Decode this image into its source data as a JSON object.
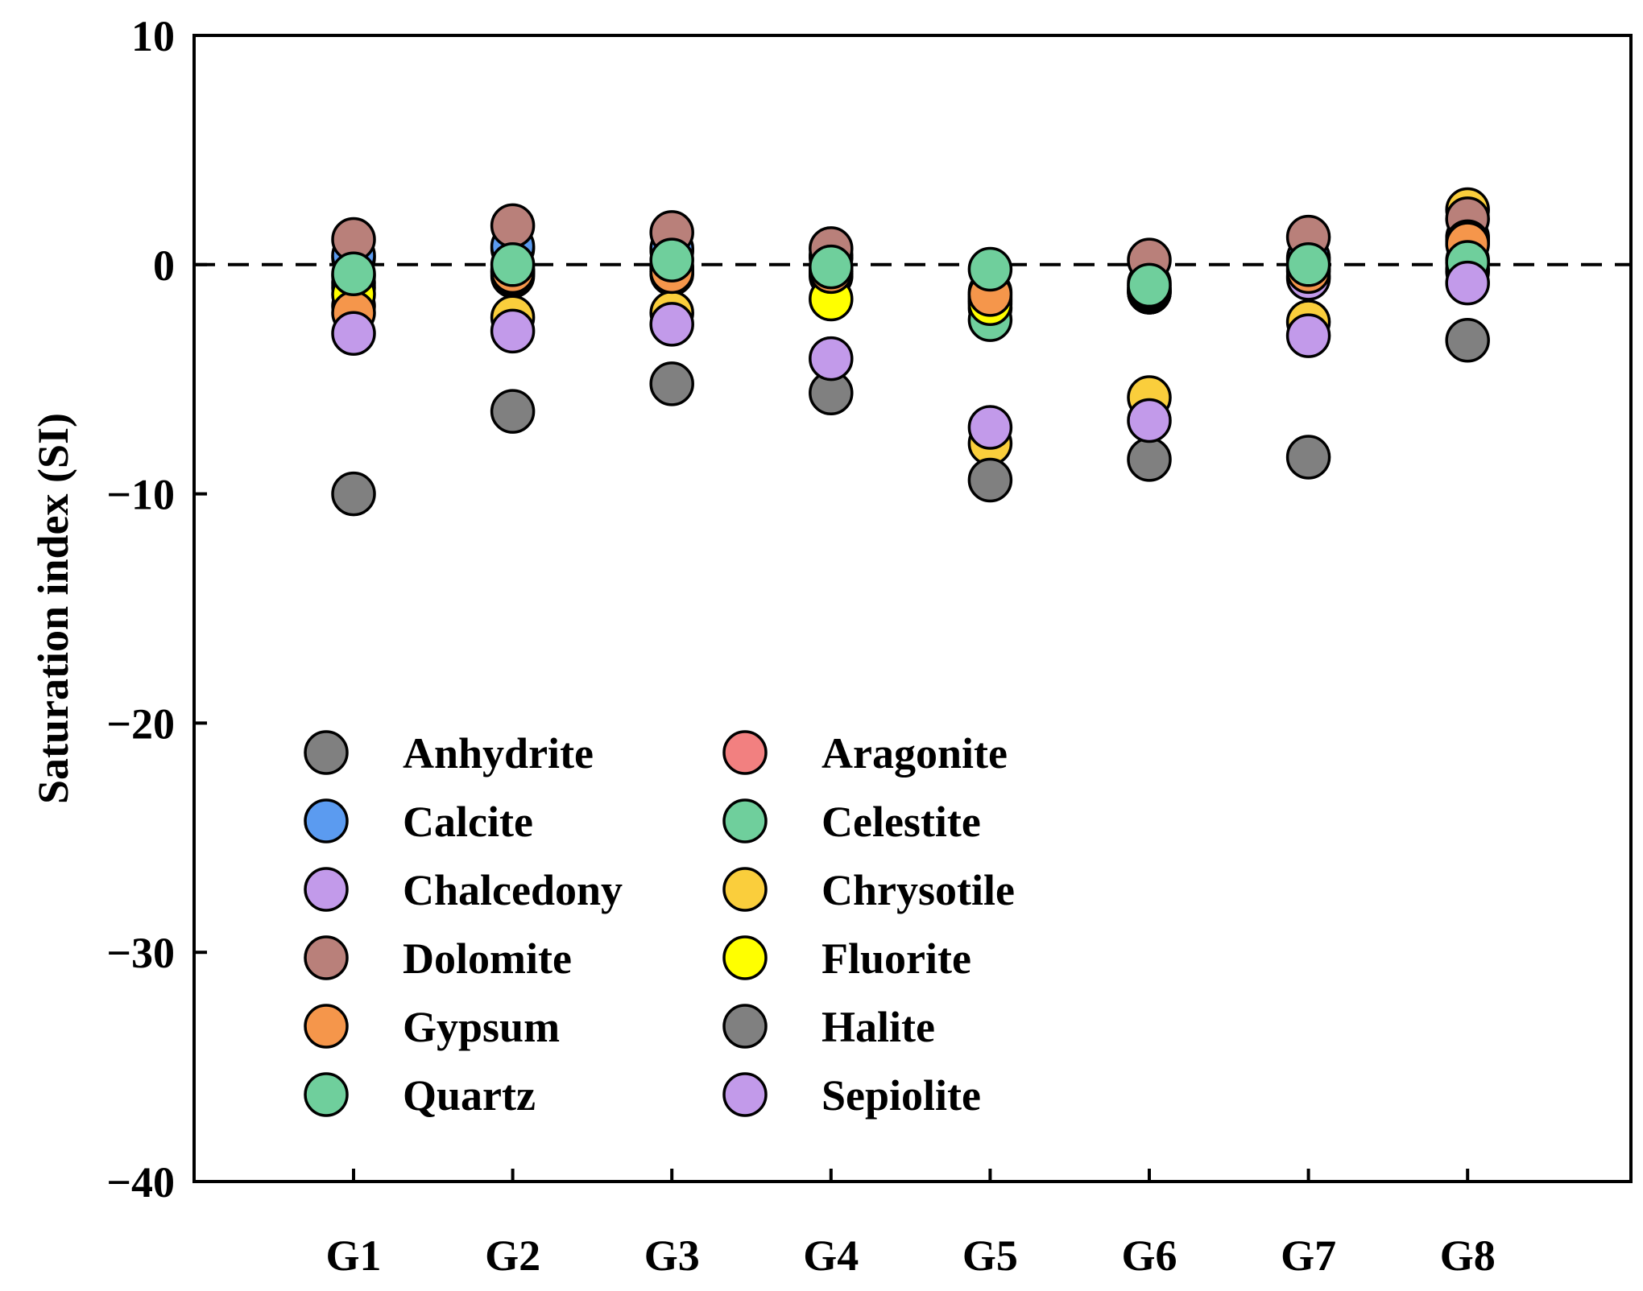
{
  "chart_data": {
    "type": "scatter",
    "title": "",
    "xlabel": "",
    "ylabel": "Saturation index (SI)",
    "ylim": [
      -40,
      10
    ],
    "yticks": [
      10,
      0,
      -10,
      -20,
      -30,
      -40
    ],
    "ytick_labels": [
      "10",
      "0",
      "−10",
      "−20",
      "−30",
      "−40"
    ],
    "reference_line": {
      "y": 0,
      "style": "dashed"
    },
    "categories": [
      "G1",
      "G2",
      "G3",
      "G4",
      "G5",
      "G6",
      "G7",
      "G8"
    ],
    "legend_position": "lower-left",
    "series": [
      {
        "name": "Anhydrite",
        "color": "#808080",
        "values": [
          -1.0,
          -0.5,
          -0.4,
          -0.4,
          -1.9,
          -1.2,
          -0.5,
          -0.3
        ]
      },
      {
        "name": "Aragonite",
        "color": "#F28080",
        "values": [
          0.3,
          0.7,
          0.6,
          0.3,
          -1.5,
          -1.2,
          0.2,
          1.1
        ]
      },
      {
        "name": "Calcite",
        "color": "#5B9BF0",
        "values": [
          0.4,
          0.8,
          0.7,
          0.4,
          -1.4,
          -1.1,
          0.3,
          1.2
        ]
      },
      {
        "name": "Celestite",
        "color": "#6FCF9C",
        "values": [
          -0.5,
          -0.2,
          -0.1,
          -0.3,
          -2.4,
          -0.8,
          -0.1,
          0.2
        ]
      },
      {
        "name": "Chalcedony",
        "color": "#C29AEA",
        "values": [
          -0.8,
          -0.4,
          -0.3,
          -0.5,
          -1.6,
          -1.2,
          -0.6,
          -0.2
        ]
      },
      {
        "name": "Chrysotile",
        "color": "#FACE3C",
        "values": [
          -1.8,
          -2.3,
          -2.1,
          -0.4,
          -7.8,
          -5.8,
          -2.5,
          2.4
        ]
      },
      {
        "name": "Dolomite",
        "color": "#B9807A",
        "values": [
          1.1,
          1.7,
          1.4,
          0.7,
          -1.2,
          0.2,
          1.2,
          2.0
        ]
      },
      {
        "name": "Fluorite",
        "color": "#FFFF00",
        "values": [
          -1.3,
          -0.3,
          -0.2,
          -1.5,
          -1.7,
          -1.1,
          -0.2,
          1.0
        ]
      },
      {
        "name": "Gypsum",
        "color": "#F5964B",
        "values": [
          -2.1,
          -0.3,
          -0.3,
          -0.3,
          -1.3,
          -1.0,
          -0.3,
          0.9
        ]
      },
      {
        "name": "Halite",
        "color": "#808080",
        "values": [
          -10.0,
          -6.4,
          -5.2,
          -5.6,
          -9.4,
          -8.5,
          -8.4,
          -3.3
        ]
      },
      {
        "name": "Quartz",
        "color": "#6FCF9C",
        "values": [
          -0.4,
          0.0,
          0.2,
          -0.1,
          -0.2,
          -0.9,
          0.0,
          0.1
        ]
      },
      {
        "name": "Sepiolite",
        "color": "#C29AEA",
        "values": [
          -3.0,
          -2.9,
          -2.6,
          -4.1,
          -7.1,
          -6.8,
          -3.1,
          -0.8
        ]
      }
    ],
    "legend": {
      "columns": [
        [
          {
            "label": "Anhydrite",
            "color": "#808080"
          },
          {
            "label": "Calcite",
            "color": "#5B9BF0"
          },
          {
            "label": "Chalcedony",
            "color": "#C29AEA"
          },
          {
            "label": "Dolomite",
            "color": "#B9807A"
          },
          {
            "label": "Gypsum",
            "color": "#F5964B"
          },
          {
            "label": "Quartz",
            "color": "#6FCF9C"
          }
        ],
        [
          {
            "label": "Aragonite",
            "color": "#F28080"
          },
          {
            "label": "Celestite",
            "color": "#6FCF9C"
          },
          {
            "label": "Chrysotile",
            "color": "#FACE3C"
          },
          {
            "label": "Fluorite",
            "color": "#FFFF00"
          },
          {
            "label": "Halite",
            "color": "#808080"
          },
          {
            "label": "Sepiolite",
            "color": "#C29AEA"
          }
        ]
      ]
    }
  }
}
